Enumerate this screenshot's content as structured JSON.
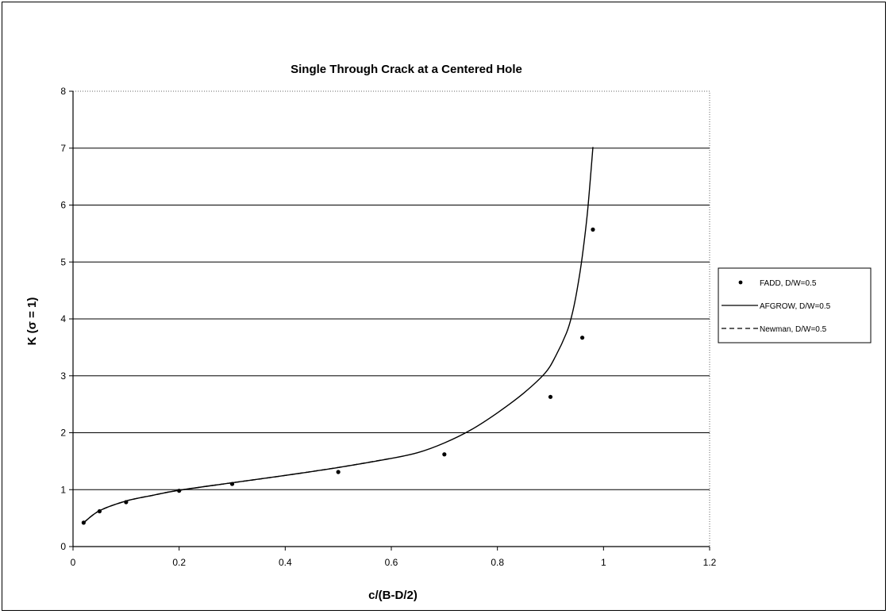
{
  "chart_data": {
    "type": "scatter",
    "title": "Single Through Crack at a Centered Hole",
    "xlabel": "c/(B-D/2)",
    "ylabel": "K (σ = 1)",
    "xlim": [
      0,
      1.2
    ],
    "ylim": [
      0,
      8
    ],
    "x_ticks": [
      0,
      0.2,
      0.4,
      0.6,
      0.8,
      1,
      1.2
    ],
    "x_tick_labels": [
      "0",
      "0.2",
      "0.4",
      "0.6",
      "0.8",
      "1",
      "1.2"
    ],
    "y_ticks": [
      0,
      1,
      2,
      3,
      4,
      5,
      6,
      7,
      8
    ],
    "y_tick_labels": [
      "0",
      "1",
      "2",
      "3",
      "4",
      "5",
      "6",
      "7",
      "8"
    ],
    "grid": "horizontal",
    "legend_position": "right",
    "series": [
      {
        "name": "FADD, D/W=0.5",
        "style": "markers",
        "color": "#000000",
        "x": [
          0.02,
          0.05,
          0.1,
          0.2,
          0.3,
          0.5,
          0.7,
          0.9,
          0.96,
          0.98
        ],
        "y": [
          0.42,
          0.62,
          0.78,
          0.98,
          1.1,
          1.31,
          1.62,
          2.63,
          3.67,
          5.57
        ]
      },
      {
        "name": "AFGROW, D/W=0.5",
        "style": "solid",
        "color": "#000000",
        "x": [
          0.02,
          0.05,
          0.1,
          0.15,
          0.2,
          0.3,
          0.4,
          0.5,
          0.6,
          0.65,
          0.7,
          0.75,
          0.8,
          0.85,
          0.89,
          0.91,
          0.93,
          0.94,
          0.95,
          0.96,
          0.97,
          0.98
        ],
        "y": [
          0.42,
          0.63,
          0.8,
          0.9,
          0.99,
          1.12,
          1.25,
          1.39,
          1.55,
          1.65,
          1.82,
          2.05,
          2.35,
          2.7,
          3.05,
          3.35,
          3.75,
          4.05,
          4.5,
          5.1,
          5.9,
          7.02
        ]
      },
      {
        "name": "Newman, D/W=0.5",
        "style": "dashed",
        "color": "#000000",
        "x": [
          0.02,
          0.05,
          0.1,
          0.15,
          0.2,
          0.3,
          0.4,
          0.5,
          0.6
        ],
        "y": [
          0.42,
          0.63,
          0.8,
          0.9,
          0.99,
          1.12,
          1.25,
          1.39,
          1.55
        ]
      }
    ]
  }
}
